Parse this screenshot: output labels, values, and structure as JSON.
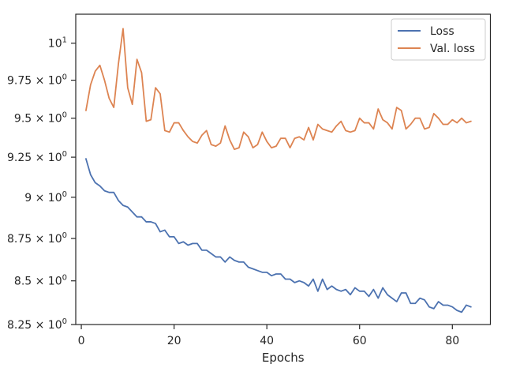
{
  "chart_data": {
    "type": "line",
    "xlabel": "Epochs",
    "ylabel": "",
    "title": "",
    "xlim": [
      -1.2,
      88.2
    ],
    "ylim": [
      8.25,
      10.2
    ],
    "yscale": "log",
    "grid": false,
    "legend_position": "top-right",
    "x_ticks": [
      {
        "value": 0,
        "label": "0"
      },
      {
        "value": 20,
        "label": "20"
      },
      {
        "value": 40,
        "label": "40"
      },
      {
        "value": 60,
        "label": "60"
      },
      {
        "value": 80,
        "label": "80"
      }
    ],
    "y_ticks": [
      {
        "value": 8.25,
        "mantissa": "8.25",
        "sep": " × ",
        "base": "10",
        "exp": "0"
      },
      {
        "value": 8.5,
        "mantissa": "8.5",
        "sep": " × ",
        "base": "10",
        "exp": "0"
      },
      {
        "value": 8.75,
        "mantissa": "8.75",
        "sep": " × ",
        "base": "10",
        "exp": "0"
      },
      {
        "value": 9.0,
        "mantissa": "9",
        "sep": " × ",
        "base": "10",
        "exp": "0"
      },
      {
        "value": 9.25,
        "mantissa": "9.25",
        "sep": " × ",
        "base": "10",
        "exp": "0"
      },
      {
        "value": 9.5,
        "mantissa": "9.5",
        "sep": " × ",
        "base": "10",
        "exp": "0"
      },
      {
        "value": 9.75,
        "mantissa": "9.75",
        "sep": " × ",
        "base": "10",
        "exp": "0"
      },
      {
        "value": 10.0,
        "mantissa": "",
        "sep": "",
        "base": "10",
        "exp": "1"
      }
    ],
    "series": [
      {
        "name": "Loss",
        "color": "#4c72b0",
        "x": [
          1,
          2,
          3,
          4,
          5,
          6,
          7,
          8,
          9,
          10,
          11,
          12,
          13,
          14,
          15,
          16,
          17,
          18,
          19,
          20,
          21,
          22,
          23,
          24,
          25,
          26,
          27,
          28,
          29,
          30,
          31,
          32,
          33,
          34,
          35,
          36,
          37,
          38,
          39,
          40,
          41,
          42,
          43,
          44,
          45,
          46,
          47,
          48,
          49,
          50,
          51,
          52,
          53,
          54,
          55,
          56,
          57,
          58,
          59,
          60,
          61,
          62,
          63,
          64,
          65,
          66,
          67,
          68,
          69,
          70,
          71,
          72,
          73,
          74,
          75,
          76,
          77,
          78,
          79,
          80,
          81,
          82,
          83,
          84
        ],
        "values": [
          9.24,
          9.14,
          9.09,
          9.07,
          9.04,
          9.03,
          9.03,
          8.98,
          8.95,
          8.94,
          8.91,
          8.88,
          8.88,
          8.85,
          8.85,
          8.84,
          8.79,
          8.8,
          8.76,
          8.76,
          8.72,
          8.73,
          8.71,
          8.72,
          8.72,
          8.68,
          8.68,
          8.66,
          8.64,
          8.64,
          8.61,
          8.64,
          8.62,
          8.61,
          8.61,
          8.58,
          8.57,
          8.56,
          8.55,
          8.55,
          8.53,
          8.54,
          8.54,
          8.51,
          8.51,
          8.49,
          8.5,
          8.49,
          8.47,
          8.51,
          8.44,
          8.51,
          8.45,
          8.47,
          8.45,
          8.44,
          8.45,
          8.42,
          8.46,
          8.44,
          8.44,
          8.41,
          8.45,
          8.4,
          8.46,
          8.42,
          8.4,
          8.38,
          8.43,
          8.43,
          8.37,
          8.37,
          8.4,
          8.39,
          8.35,
          8.34,
          8.38,
          8.36,
          8.36,
          8.35,
          8.33,
          8.32,
          8.36,
          8.35
        ]
      },
      {
        "name": "Val. loss",
        "color": "#dd8452",
        "x": [
          1,
          2,
          3,
          4,
          5,
          6,
          7,
          8,
          9,
          10,
          11,
          12,
          13,
          14,
          15,
          16,
          17,
          18,
          19,
          20,
          21,
          22,
          23,
          24,
          25,
          26,
          27,
          28,
          29,
          30,
          31,
          32,
          33,
          34,
          35,
          36,
          37,
          38,
          39,
          40,
          41,
          42,
          43,
          44,
          45,
          46,
          47,
          48,
          49,
          50,
          51,
          52,
          53,
          54,
          55,
          56,
          57,
          58,
          59,
          60,
          61,
          62,
          63,
          64,
          65,
          66,
          67,
          68,
          69,
          70,
          71,
          72,
          73,
          74,
          75,
          76,
          77,
          78,
          79,
          80,
          81,
          82,
          83,
          84
        ],
        "values": [
          9.55,
          9.72,
          9.81,
          9.85,
          9.75,
          9.63,
          9.57,
          9.86,
          10.1,
          9.7,
          9.59,
          9.89,
          9.8,
          9.48,
          9.49,
          9.7,
          9.66,
          9.42,
          9.41,
          9.47,
          9.47,
          9.42,
          9.38,
          9.35,
          9.34,
          9.39,
          9.42,
          9.33,
          9.32,
          9.34,
          9.45,
          9.36,
          9.3,
          9.31,
          9.41,
          9.38,
          9.31,
          9.33,
          9.41,
          9.35,
          9.31,
          9.32,
          9.37,
          9.37,
          9.31,
          9.37,
          9.38,
          9.36,
          9.44,
          9.36,
          9.46,
          9.43,
          9.42,
          9.41,
          9.45,
          9.48,
          9.42,
          9.41,
          9.42,
          9.5,
          9.47,
          9.47,
          9.43,
          9.56,
          9.49,
          9.47,
          9.43,
          9.57,
          9.55,
          9.43,
          9.46,
          9.5,
          9.5,
          9.43,
          9.44,
          9.53,
          9.5,
          9.46,
          9.46,
          9.49,
          9.47,
          9.5,
          9.47,
          9.48
        ]
      }
    ]
  }
}
